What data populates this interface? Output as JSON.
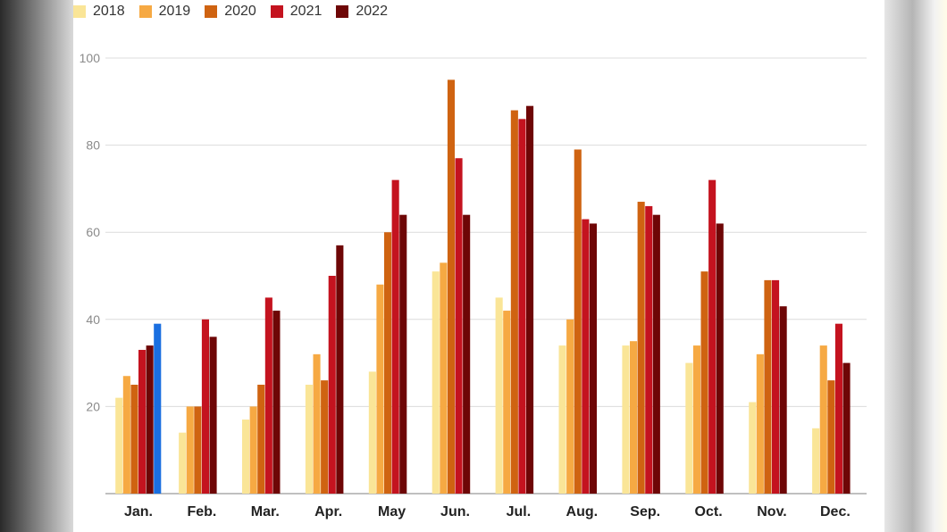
{
  "chart_data": {
    "type": "bar",
    "title": "",
    "xlabel": "",
    "ylabel": "",
    "ylim": [
      0,
      100
    ],
    "y_ticks": [
      "20",
      "40",
      "60",
      "80",
      "100"
    ],
    "grid": true,
    "legend_position": "top-left",
    "categories": [
      "Jan.",
      "Feb.",
      "Mar.",
      "Apr.",
      "May",
      "Jun.",
      "Jul.",
      "Aug.",
      "Sep.",
      "Oct.",
      "Nov.",
      "Dec."
    ],
    "series": [
      {
        "name": "2018",
        "color": "#fae597",
        "values": [
          22,
          14,
          17,
          25,
          28,
          51,
          45,
          34,
          34,
          30,
          21,
          15
        ]
      },
      {
        "name": "2019",
        "color": "#f6a943",
        "values": [
          27,
          20,
          20,
          32,
          48,
          53,
          42,
          40,
          35,
          34,
          32,
          34
        ]
      },
      {
        "name": "2020",
        "color": "#cf6311",
        "values": [
          25,
          20,
          25,
          26,
          60,
          95,
          88,
          79,
          67,
          51,
          49,
          26
        ]
      },
      {
        "name": "2021",
        "color": "#c4131f",
        "values": [
          33,
          40,
          45,
          50,
          72,
          77,
          86,
          63,
          66,
          72,
          49,
          39
        ]
      },
      {
        "name": "2022",
        "color": "#6e0606",
        "values": [
          34,
          36,
          42,
          57,
          64,
          64,
          89,
          62,
          64,
          62,
          43,
          30
        ]
      }
    ],
    "extra_bar": {
      "category": "Jan.",
      "value": 39,
      "color": "#1a6fe0"
    }
  }
}
